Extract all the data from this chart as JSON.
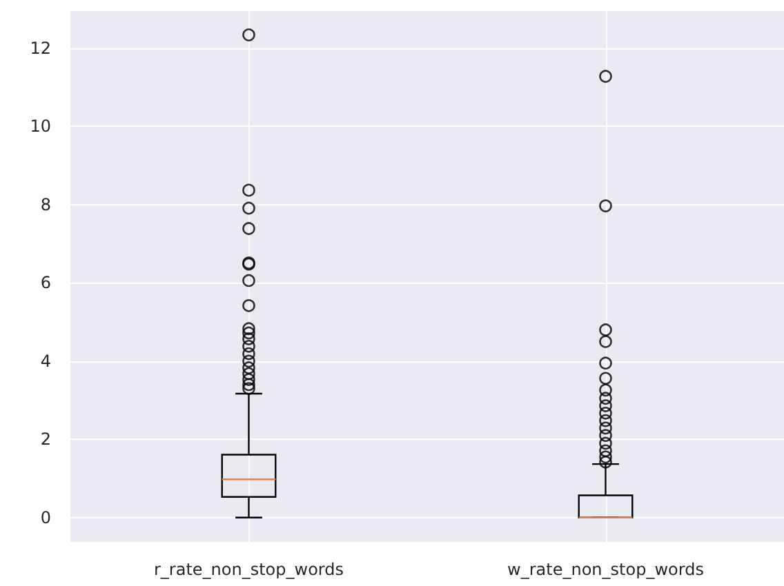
{
  "chart_data": {
    "type": "box",
    "categories": [
      "r_rate_non_stop_words",
      "w_rate_non_stop_words"
    ],
    "color": "#000000",
    "boxes": [
      {
        "low": 0,
        "q1": 0.53,
        "median": 0.98,
        "q3": 1.61,
        "high": 3.17,
        "outliers": [
          12.34,
          8.37,
          7.91,
          7.39,
          6.51,
          6.48,
          6.06,
          5.42,
          4.83,
          4.72,
          4.57,
          4.38,
          4.19,
          4.0,
          3.83,
          3.68,
          3.53,
          3.4,
          3.3
        ]
      },
      {
        "low": 0,
        "q1": 0,
        "median": 0,
        "q3": 0.57,
        "high": 1.37,
        "outliers": [
          11.28,
          7.97,
          4.8,
          4.5,
          3.95,
          3.56,
          3.26,
          3.05,
          2.86,
          2.67,
          2.48,
          2.29,
          2.1,
          1.9,
          1.71,
          1.55,
          1.42
        ]
      }
    ],
    "ylim": [
      -0.62,
      12.95
    ],
    "yticks": [
      0,
      2,
      4,
      6,
      8,
      10,
      12
    ],
    "grid": true
  }
}
